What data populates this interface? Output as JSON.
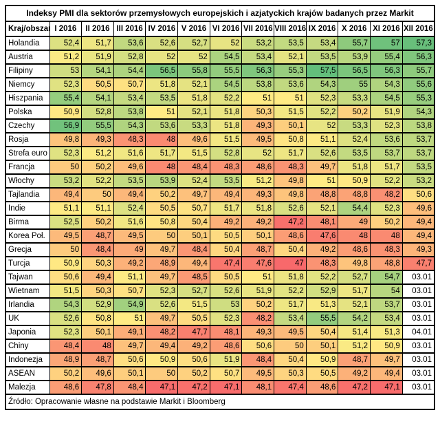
{
  "color_scale": {
    "min_value": 47,
    "mid_value": 51,
    "max_value": 57.5,
    "min_color": "#F8696B",
    "mid_color": "#FFEB84",
    "max_color": "#63BE7B",
    "date_cell_bg": "#FFFFFF",
    "border_color": "#000000"
  },
  "chart_data": {
    "type": "heatmap",
    "title": "Indeksy PMI dla sektorów przemysłowych europejskich i azjatyckich krajów badanych przez Markit",
    "source": "Źródło: Opracowanie własne na podstawie Markit i Bloomberg",
    "columns": [
      "Kraj/obszar",
      "I 2016",
      "II 2016",
      "III 2016",
      "IV 2016",
      "V 2016",
      "VI 2016",
      "VII 2016",
      "VIII 2016",
      "IX 2016",
      "X 2016",
      "XI 2016",
      "XII 2016"
    ],
    "rows": [
      {
        "label": "Holandia",
        "values": [
          "52,4",
          "51,7",
          "53,6",
          "52,6",
          "52,7",
          "52",
          "53,2",
          "53,5",
          "53,4",
          "55,7",
          "57",
          "57,3"
        ]
      },
      {
        "label": "Austria",
        "values": [
          "51,2",
          "51,9",
          "52,8",
          "52",
          "52",
          "54,5",
          "53,4",
          "52,1",
          "53,5",
          "53,9",
          "55,4",
          "56,3"
        ]
      },
      {
        "label": "Filipiny",
        "values": [
          "53",
          "54,1",
          "54,4",
          "56,5",
          "55,8",
          "55,5",
          "56,3",
          "55,3",
          "57,5",
          "56,5",
          "56,3",
          "55,7"
        ]
      },
      {
        "label": "Niemcy",
        "values": [
          "52,3",
          "50,5",
          "50,7",
          "51,8",
          "52,1",
          "54,5",
          "53,8",
          "53,6",
          "54,3",
          "55",
          "54,3",
          "55,6"
        ]
      },
      {
        "label": "Hiszpania",
        "values": [
          "55,4",
          "54,1",
          "53,4",
          "53,5",
          "51,8",
          "52,2",
          "51",
          "51",
          "52,3",
          "53,3",
          "54,5",
          "55,3"
        ]
      },
      {
        "label": "Polska",
        "values": [
          "50,9",
          "52,8",
          "53,8",
          "51",
          "52,1",
          "51,8",
          "50,3",
          "51,5",
          "52,2",
          "50,2",
          "51,9",
          "54,3"
        ]
      },
      {
        "label": "Czechy",
        "values": [
          "56,9",
          "55,5",
          "54,3",
          "53,6",
          "53,3",
          "51,8",
          "49,3",
          "50,1",
          "52",
          "53,3",
          "52,3",
          "53,8"
        ]
      },
      {
        "label": "Rosja",
        "values": [
          "49,8",
          "49,3",
          "48,3",
          "48",
          "49,6",
          "51,5",
          "49,5",
          "50,8",
          "51,1",
          "52,4",
          "53,6",
          "53,7"
        ]
      },
      {
        "label": "Strefa euro",
        "values": [
          "52,3",
          "51,2",
          "51,6",
          "51,7",
          "51,5",
          "52,8",
          "52",
          "51,7",
          "52,6",
          "53,5",
          "53,7",
          "53,7"
        ]
      },
      {
        "label": "Francja",
        "values": [
          "50",
          "50,2",
          "49,6",
          "48",
          "48,4",
          "48,3",
          "48,6",
          "48,3",
          "49,7",
          "51,8",
          "51,7",
          "53,5"
        ]
      },
      {
        "label": "Włochy",
        "values": [
          "53,2",
          "52,2",
          "53,5",
          "53,9",
          "52,4",
          "53,5",
          "51,2",
          "49,8",
          "51",
          "50,9",
          "52,2",
          "53,2"
        ]
      },
      {
        "label": "Tajlandia",
        "values": [
          "49,4",
          "50",
          "49,4",
          "50,2",
          "49,7",
          "49,4",
          "49,3",
          "49,8",
          "48,8",
          "48,8",
          "48,2",
          "50,6"
        ]
      },
      {
        "label": "Indie",
        "values": [
          "51,1",
          "51,1",
          "52,4",
          "50,5",
          "50,7",
          "51,7",
          "51,8",
          "52,6",
          "52,1",
          "54,4",
          "52,3",
          "49,6"
        ]
      },
      {
        "label": "Birma",
        "values": [
          "52,5",
          "50,2",
          "51,6",
          "50,8",
          "50,4",
          "49,2",
          "49,2",
          "47,2",
          "48,1",
          "49",
          "50,2",
          "49,4"
        ]
      },
      {
        "label": "Korea Poł.",
        "values": [
          "49,5",
          "48,7",
          "49,5",
          "50",
          "50,1",
          "50,5",
          "50,1",
          "48,6",
          "47,6",
          "48",
          "48",
          "49,4"
        ]
      },
      {
        "label": "Grecja",
        "values": [
          "50",
          "48,4",
          "49",
          "49,7",
          "48,4",
          "50,4",
          "48,7",
          "50,4",
          "49,2",
          "48,6",
          "48,3",
          "49,3"
        ]
      },
      {
        "label": "Turcja",
        "values": [
          "50,9",
          "50,3",
          "49,2",
          "48,9",
          "49,4",
          "47,4",
          "47,6",
          "47",
          "48,3",
          "49,8",
          "48,8",
          "47,7"
        ]
      },
      {
        "label": "Tajwan",
        "values": [
          "50,6",
          "49,4",
          "51,1",
          "49,7",
          "48,5",
          "50,5",
          "51",
          "51,8",
          "52,2",
          "52,7",
          "54,7",
          "03.01"
        ]
      },
      {
        "label": "Wietnam",
        "values": [
          "51,5",
          "50,3",
          "50,7",
          "52,3",
          "52,7",
          "52,6",
          "51,9",
          "52,2",
          "52,9",
          "51,7",
          "54",
          "03.01"
        ]
      },
      {
        "label": "Irlandia",
        "values": [
          "54,3",
          "52,9",
          "54,9",
          "52,6",
          "51,5",
          "53",
          "50,2",
          "51,7",
          "51,3",
          "52,1",
          "53,7",
          "03.01"
        ]
      },
      {
        "label": "UK",
        "values": [
          "52,6",
          "50,8",
          "51",
          "49,7",
          "50,5",
          "52,3",
          "48,2",
          "53,4",
          "55,5",
          "54,2",
          "53,4",
          "03.01"
        ]
      },
      {
        "label": "Japonia",
        "values": [
          "52,3",
          "50,1",
          "49,1",
          "48,2",
          "47,7",
          "48,1",
          "49,3",
          "49,5",
          "50,4",
          "51,4",
          "51,3",
          "04.01"
        ]
      },
      {
        "label": "Chiny",
        "values": [
          "48,4",
          "48",
          "49,7",
          "49,4",
          "49,2",
          "48,6",
          "50,6",
          "50",
          "50,1",
          "51,2",
          "50,9",
          "03.01"
        ]
      },
      {
        "label": "Indonezja",
        "values": [
          "48,9",
          "48,7",
          "50,6",
          "50,9",
          "50,6",
          "51,9",
          "48,4",
          "50,4",
          "50,9",
          "48,7",
          "49,7",
          "03.01"
        ]
      },
      {
        "label": "ASEAN",
        "values": [
          "50,2",
          "49,6",
          "50,1",
          "50",
          "50,2",
          "50,7",
          "49,5",
          "50,3",
          "50,5",
          "49,2",
          "49,4",
          "03.01"
        ]
      },
      {
        "label": "Malezja",
        "values": [
          "48,6",
          "47,8",
          "48,4",
          "47,1",
          "47,2",
          "47,1",
          "48,1",
          "47,4",
          "48,6",
          "47,2",
          "47,1",
          "03.01"
        ]
      }
    ]
  }
}
